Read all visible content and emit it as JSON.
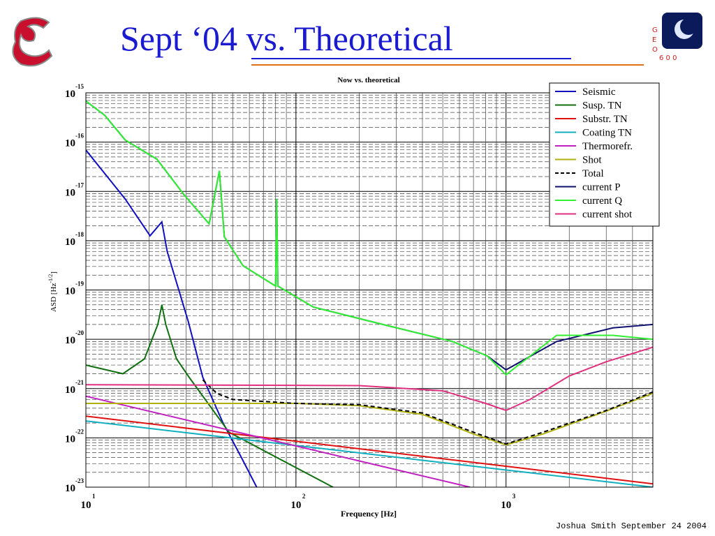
{
  "slide_title": "Sept ‘04 vs. Theoretical",
  "logo_text": [
    "G",
    "E",
    "O"
  ],
  "logo_number": "6 0 0",
  "footer": "Joshua Smith  September 24 2004",
  "chart_data": {
    "type": "line",
    "title": "Now vs. theoretical",
    "xlabel": "Frequency [Hz]",
    "ylabel": {
      "text": "ASD [Hz",
      "exponent": "-1/2",
      "close": "]"
    },
    "log_x": true,
    "log_y": true,
    "grid": true,
    "minor_grid": true,
    "legend": "upper right",
    "xlim": [
      10,
      5000
    ],
    "ylim": [
      1e-23,
      1e-15
    ],
    "xticks": [
      {
        "value": 10,
        "label": "10",
        "exponent": "1"
      },
      {
        "value": 100,
        "label": "10",
        "exponent": "2"
      },
      {
        "value": 1000,
        "label": "10",
        "exponent": "3"
      }
    ],
    "yticks": [
      {
        "value": 1e-15,
        "label": "10",
        "exponent": "-15"
      },
      {
        "value": 1e-16,
        "label": "10",
        "exponent": "-16"
      },
      {
        "value": 1e-17,
        "label": "10",
        "exponent": "-17"
      },
      {
        "value": 1e-18,
        "label": "10",
        "exponent": "-18"
      },
      {
        "value": 1e-19,
        "label": "10",
        "exponent": "-19"
      },
      {
        "value": 1e-20,
        "label": "10",
        "exponent": "-20"
      },
      {
        "value": 1e-21,
        "label": "10",
        "exponent": "-21"
      },
      {
        "value": 1e-22,
        "label": "10",
        "exponent": "-22"
      },
      {
        "value": 1e-23,
        "label": "10",
        "exponent": "-23"
      }
    ],
    "series": [
      {
        "name": "Seismic",
        "color": "#1010c0",
        "x": [
          10,
          15.4,
          20.2,
          23,
          24.4,
          30.7,
          36,
          45,
          55,
          65
        ],
        "values": [
          6.9e-17,
          7e-18,
          1.26e-18,
          2.4e-18,
          6e-19,
          2.3e-20,
          1.7e-21,
          2e-22,
          4e-23,
          1e-23
        ]
      },
      {
        "name": "Susp. TN",
        "color": "#107010",
        "x": [
          10,
          15,
          19,
          22,
          23,
          24,
          27,
          31,
          48,
          150
        ],
        "values": [
          3e-21,
          2e-21,
          4e-21,
          2e-20,
          5e-20,
          2e-20,
          4e-21,
          1.7e-21,
          1.3e-22,
          1e-23
        ]
      },
      {
        "name": "Substr. TN",
        "color": "#e01010",
        "x": [
          10,
          5000
        ],
        "values": [
          2.75e-22,
          1.17e-23
        ]
      },
      {
        "name": "Coating TN",
        "color": "#10b0c0",
        "x": [
          10,
          5000
        ],
        "values": [
          2.2e-22,
          1e-23
        ]
      },
      {
        "name": "Thermorefr.",
        "color": "#c020c0",
        "x": [
          10,
          673
        ],
        "values": [
          7e-22,
          1e-23
        ]
      },
      {
        "name": "Shot",
        "color": "#b0b010",
        "x": [
          10,
          100,
          200,
          400,
          700,
          1000,
          1500,
          3000,
          5000
        ],
        "values": [
          5e-22,
          5e-22,
          4.5e-22,
          3e-22,
          1.2e-22,
          7.2e-23,
          1.2e-22,
          3.5e-22,
          8e-22
        ]
      },
      {
        "name": "Total",
        "color": "#000000",
        "dash": true,
        "x": [
          36,
          42,
          50,
          100,
          200,
          400,
          700,
          1000,
          1500,
          3000,
          5000
        ],
        "values": [
          1.5e-21,
          8e-22,
          6e-22,
          5e-22,
          4.7e-22,
          3.2e-22,
          1.3e-22,
          7.5e-23,
          1.3e-22,
          3.6e-22,
          8.5e-22
        ]
      },
      {
        "name": "current P",
        "color": "#101070",
        "x": [
          10,
          12.3,
          15.4,
          21.8,
          29.5,
          38.6,
          43.2,
          45.6,
          56,
          80,
          81,
          82,
          121,
          259,
          557,
          813,
          1000,
          1740,
          3230,
          5000
        ],
        "values": [
          6.8e-16,
          3.5e-16,
          1.1e-16,
          4.5e-17,
          8.3e-18,
          2.2e-18,
          2.6e-17,
          1.2e-18,
          3.1e-19,
          1.2e-19,
          7e-18,
          1.2e-19,
          4.5e-20,
          2e-20,
          9e-21,
          4.6e-21,
          2.4e-21,
          9e-21,
          1.7e-20,
          2e-20
        ]
      },
      {
        "name": "current Q",
        "color": "#30f030",
        "x": [
          10,
          12.3,
          15.4,
          21.8,
          29.5,
          38.6,
          43.2,
          45.6,
          56,
          80,
          81,
          82,
          121,
          259,
          557,
          813,
          1000,
          1740,
          3230,
          5000
        ],
        "values": [
          6.8e-16,
          3.5e-16,
          1.1e-16,
          4.5e-17,
          8.3e-18,
          2.2e-18,
          2.6e-17,
          1.2e-18,
          3.1e-19,
          1.2e-19,
          7e-18,
          1.2e-19,
          4.5e-20,
          2e-20,
          9e-21,
          4.6e-21,
          1.9e-21,
          1.2e-20,
          1.2e-20,
          1e-20
        ]
      },
      {
        "name": "current shot",
        "color": "#e03080",
        "x": [
          10,
          200,
          500,
          800,
          1000,
          1300,
          2000,
          3000,
          5000
        ],
        "values": [
          1.2e-21,
          1.15e-21,
          9e-22,
          5e-22,
          3.6e-22,
          6e-22,
          1.8e-21,
          3.5e-21,
          6.9e-21
        ]
      }
    ]
  }
}
